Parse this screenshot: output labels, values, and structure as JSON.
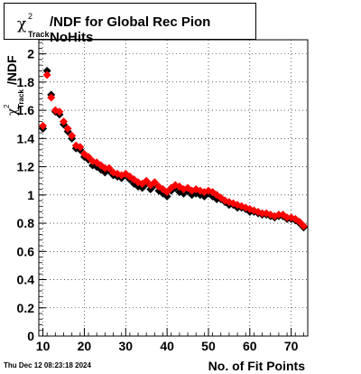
{
  "footer": {
    "timestamp": "Thu Dec 12 08:23:18 2024"
  },
  "chart_data": {
    "type": "scatter",
    "title": "/NDF for Global Rec Pion NoHits",
    "title_symbol": "χ",
    "title_sup": "2",
    "title_sub": "Track",
    "xlabel": "No. of Fit Points",
    "ylabel": "/NDF",
    "ylabel_symbol": "χ",
    "ylabel_sup": "2",
    "ylabel_sub": "Track",
    "xlim": [
      9,
      74
    ],
    "ylim": [
      0,
      2.1
    ],
    "xticks": [
      10,
      20,
      30,
      40,
      50,
      60,
      70
    ],
    "yticks": [
      0,
      0.2,
      0.4,
      0.6,
      0.8,
      1,
      1.2,
      1.4,
      1.6,
      1.8,
      2
    ],
    "grid": true,
    "colors": {
      "series_a": "#000000",
      "series_b": "#ff0000"
    },
    "series": [
      {
        "color": "black",
        "x": [
          10,
          11,
          12,
          13,
          14,
          15,
          16,
          17,
          18,
          19,
          20,
          21,
          22,
          23,
          24,
          25,
          26,
          27,
          28,
          29,
          30,
          31,
          32,
          33,
          34,
          35,
          36,
          37,
          38,
          39,
          40,
          41,
          42,
          43,
          44,
          45,
          46,
          47,
          48,
          49,
          50,
          51,
          52,
          53,
          54,
          55,
          56,
          57,
          58,
          59,
          60,
          61,
          62,
          63,
          64,
          65,
          66,
          67,
          68,
          69,
          70,
          71,
          72,
          73
        ],
        "y": [
          1.47,
          1.88,
          1.71,
          1.59,
          1.57,
          1.5,
          1.45,
          1.4,
          1.33,
          1.32,
          1.27,
          1.25,
          1.21,
          1.2,
          1.18,
          1.16,
          1.17,
          1.14,
          1.13,
          1.12,
          1.14,
          1.11,
          1.08,
          1.06,
          1.05,
          1.08,
          1.04,
          1.07,
          1.03,
          1.01,
          0.99,
          1.03,
          1.05,
          1.02,
          1.01,
          1.03,
          1.0,
          1.01,
          1.0,
          0.99,
          1.01,
          0.99,
          0.97,
          0.97,
          0.95,
          0.93,
          0.93,
          0.91,
          0.91,
          0.9,
          0.88,
          0.88,
          0.87,
          0.86,
          0.86,
          0.85,
          0.84,
          0.85,
          0.85,
          0.83,
          0.83,
          0.82,
          0.8,
          0.77
        ]
      },
      {
        "color": "red",
        "x": [
          10,
          11,
          12,
          13,
          14,
          15,
          16,
          17,
          18,
          19,
          20,
          21,
          22,
          23,
          24,
          25,
          26,
          27,
          28,
          29,
          30,
          31,
          32,
          33,
          34,
          35,
          36,
          37,
          38,
          39,
          40,
          41,
          42,
          43,
          44,
          45,
          46,
          47,
          48,
          49,
          50,
          51,
          52,
          53,
          54,
          55,
          56,
          57,
          58,
          59,
          60,
          61,
          62,
          63,
          64,
          65,
          66,
          67,
          68,
          69,
          70,
          71,
          72,
          73
        ],
        "y": [
          1.49,
          1.85,
          1.69,
          1.6,
          1.59,
          1.52,
          1.47,
          1.42,
          1.35,
          1.34,
          1.29,
          1.27,
          1.24,
          1.23,
          1.21,
          1.19,
          1.19,
          1.16,
          1.15,
          1.14,
          1.15,
          1.13,
          1.11,
          1.09,
          1.08,
          1.1,
          1.07,
          1.09,
          1.06,
          1.04,
          1.02,
          1.05,
          1.07,
          1.06,
          1.04,
          1.05,
          1.03,
          1.04,
          1.03,
          1.02,
          1.03,
          1.02,
          1.0,
          0.98,
          0.96,
          0.95,
          0.94,
          0.93,
          0.92,
          0.91,
          0.9,
          0.89,
          0.88,
          0.87,
          0.87,
          0.86,
          0.85,
          0.86,
          0.86,
          0.84,
          0.84,
          0.83,
          0.81,
          0.78
        ]
      }
    ]
  }
}
